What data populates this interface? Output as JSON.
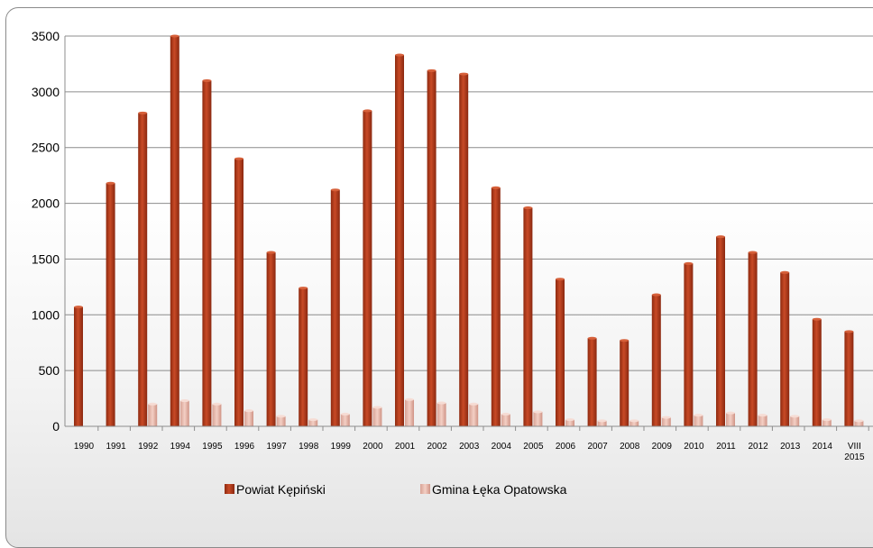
{
  "chart_data": {
    "type": "bar",
    "title": "",
    "xlabel": "",
    "ylabel": "",
    "ylim": [
      0,
      3500
    ],
    "yticks": [
      0,
      500,
      1000,
      1500,
      2000,
      2500,
      3000,
      3500
    ],
    "grid": true,
    "legend_position": "bottom",
    "categories": [
      "1990",
      "1991",
      "1992",
      "1994",
      "1995",
      "1996",
      "1997",
      "1998",
      "1999",
      "2000",
      "2001",
      "2002",
      "2003",
      "2004",
      "2005",
      "2006",
      "2007",
      "2008",
      "2009",
      "2010",
      "2011",
      "2012",
      "2013",
      "2014",
      "VIII 2015"
    ],
    "series": [
      {
        "name": "Powiat Kępiński",
        "color": "#b8391a",
        "values": [
          1070,
          2180,
          2810,
          3500,
          3100,
          2400,
          1560,
          1240,
          2120,
          2830,
          3330,
          3190,
          3160,
          2140,
          1960,
          1320,
          790,
          770,
          1180,
          1460,
          1700,
          1560,
          1380,
          960,
          850
        ]
      },
      {
        "name": "Gmina Łęka Opatowska",
        "color": "#e8b0a4",
        "values": [
          0,
          0,
          200,
          230,
          200,
          140,
          90,
          60,
          110,
          170,
          240,
          210,
          200,
          110,
          130,
          60,
          50,
          50,
          80,
          100,
          120,
          100,
          90,
          60,
          50
        ]
      }
    ]
  }
}
